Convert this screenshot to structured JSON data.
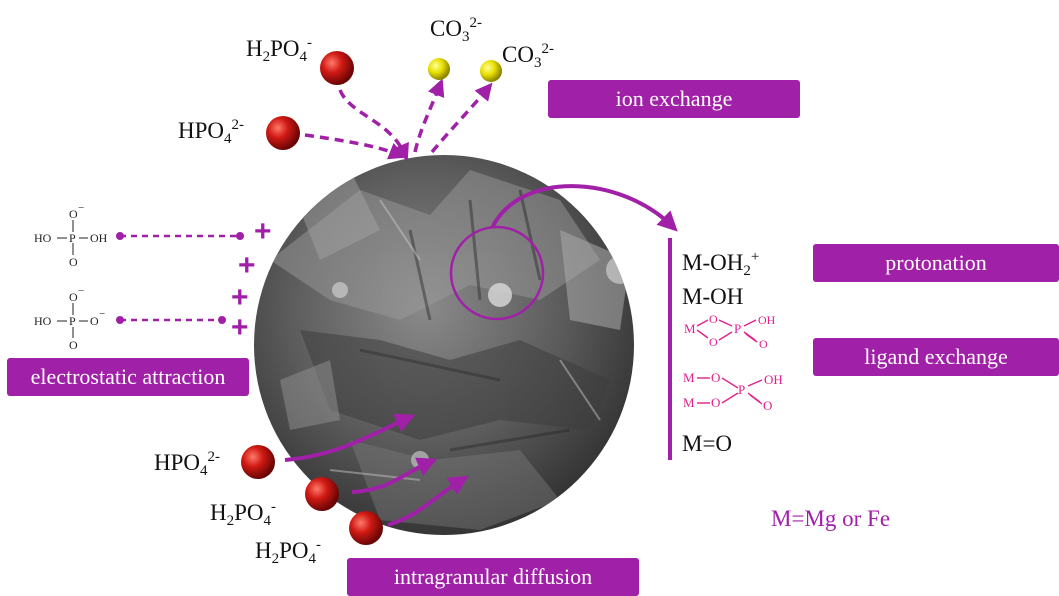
{
  "labels": {
    "h2po4_top": "H2PO4",
    "h2po4_top_charge": "-",
    "hpo4_top": "HPO4",
    "hpo4_top_charge": "2-",
    "co3_a": "CO3",
    "co3_a_charge": "2-",
    "co3_b": "CO3",
    "co3_b_charge": "2-",
    "hpo4_bottom": "HPO4",
    "hpo4_bottom_charge": "2-",
    "h2po4_bottom_1": "H2PO4",
    "h2po4_bottom_1_charge": "-",
    "h2po4_bottom_2": "H2PO4",
    "h2po4_bottom_2_charge": "-",
    "subscript_2": "2",
    "subscript_4": "4",
    "subscript_3": "3"
  },
  "badges": {
    "ion_exchange": "ion exchange",
    "protonation": "protonation",
    "ligand_exchange": "ligand exchange",
    "electrostatic": "electrostatic attraction",
    "intragranular": "intragranular diffusion"
  },
  "mechanism": {
    "moh2": "M-OH",
    "moh2_sub": "2",
    "moh2_sup": "+",
    "moh": "M-OH",
    "mo": "M=O"
  },
  "note": "M=Mg or Fe",
  "plus_sign": "+",
  "structures": {
    "h2po4_struct": {
      "o_minus": "O",
      "minus": "−",
      "ho_left": "HO",
      "p": "P",
      "oh_right": "OH",
      "o_bottom": "O"
    },
    "hpo4_struct": {
      "o_minus": "O",
      "minus": "−",
      "ho_left": "HO",
      "p": "P",
      "o_right": "O",
      "minus_right": "−",
      "o_bottom": "O"
    }
  },
  "ligand": {
    "mono": {
      "m": "M",
      "o1": "O",
      "o2": "O",
      "p": "P",
      "oh": "OH",
      "o_eq": "O"
    },
    "bi": {
      "m1": "M",
      "m2": "M",
      "o1": "O",
      "o2": "O",
      "p": "P",
      "oh": "OH",
      "o_eq": "O"
    }
  },
  "colors": {
    "accent": "#a020a8",
    "phosphate_ball": "#c01818",
    "carbonate_ball": "#e6e000",
    "ligand_text": "#e0208c"
  }
}
